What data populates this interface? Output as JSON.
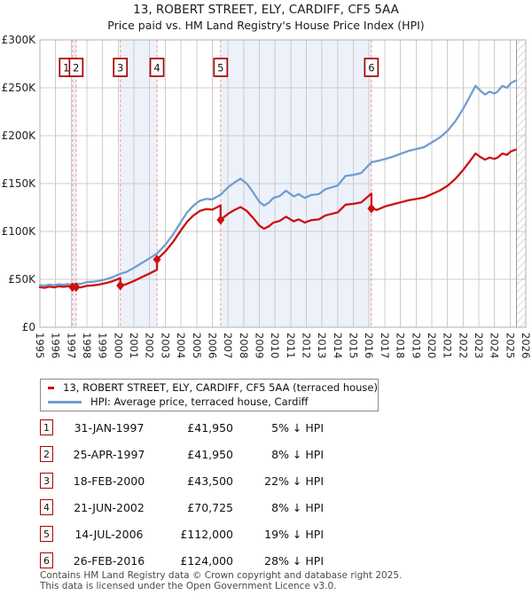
{
  "titles": {
    "line1": "13, ROBERT STREET, ELY, CARDIFF, CF5 5AA",
    "line2": "Price paid vs. HM Land Registry's House Price Index (HPI)"
  },
  "legend": {
    "items": [
      {
        "label": "13, ROBERT STREET, ELY, CARDIFF, CF5 5AA (terraced house)",
        "color": "#cc1111"
      },
      {
        "label": "HPI: Average price, terraced house, Cardiff",
        "color": "#6f9ed1"
      }
    ]
  },
  "table": {
    "rows": [
      {
        "n": "1",
        "date": "31-JAN-1997",
        "price": "£41,950",
        "vs_hpi": "5% ↓ HPI"
      },
      {
        "n": "2",
        "date": "25-APR-1997",
        "price": "£41,950",
        "vs_hpi": "8% ↓ HPI"
      },
      {
        "n": "3",
        "date": "18-FEB-2000",
        "price": "£43,500",
        "vs_hpi": "22% ↓ HPI"
      },
      {
        "n": "4",
        "date": "21-JUN-2002",
        "price": "£70,725",
        "vs_hpi": "8% ↓ HPI"
      },
      {
        "n": "5",
        "date": "14-JUL-2006",
        "price": "£112,000",
        "vs_hpi": "19% ↓ HPI"
      },
      {
        "n": "6",
        "date": "26-FEB-2016",
        "price": "£124,000",
        "vs_hpi": "28% ↓ HPI"
      }
    ]
  },
  "footer": {
    "line1": "Contains HM Land Registry data © Crown copyright and database right 2025.",
    "line2": "This data is licensed under the Open Government Licence v3.0."
  },
  "chart_data": {
    "type": "line",
    "title": "Price paid vs. HPI",
    "x_range": [
      1995,
      2026
    ],
    "ylim": [
      0,
      300000
    ],
    "y_ticks": [
      {
        "v": 0,
        "label": "£0"
      },
      {
        "v": 50,
        "label": "£50K"
      },
      {
        "v": 100,
        "label": "£100K"
      },
      {
        "v": 150,
        "label": "£150K"
      },
      {
        "v": 200,
        "label": "£200K"
      },
      {
        "v": 250,
        "label": "£250K"
      },
      {
        "v": 300,
        "label": "£300K"
      }
    ],
    "grid": true,
    "hatch_from": 2025.42,
    "bands": [
      [
        1997.08,
        1997.31
      ],
      [
        2000.13,
        2002.47
      ],
      [
        2006.53,
        2016.15
      ]
    ],
    "band_color": "#edf1fa",
    "sale_line_color": "#f09090",
    "grid_color": "#cccccc",
    "frame_color": "#b0b0b0",
    "series": [
      {
        "name": "hpi",
        "color": "#6f9ed1",
        "points": [
          [
            1995,
            44
          ],
          [
            1995.3,
            43.3
          ],
          [
            1995.6,
            44.6
          ],
          [
            1995.9,
            43.8
          ],
          [
            1996.2,
            44.9
          ],
          [
            1996.5,
            44.3
          ],
          [
            1996.8,
            45
          ],
          [
            1997.08,
            44.2
          ],
          [
            1997.31,
            45.6
          ],
          [
            1997.6,
            45.2
          ],
          [
            1998,
            47
          ],
          [
            1998.4,
            47.5
          ],
          [
            1998.8,
            48.5
          ],
          [
            1999.2,
            50
          ],
          [
            1999.6,
            52
          ],
          [
            2000.13,
            55.8
          ],
          [
            2000.5,
            57.5
          ],
          [
            2001,
            62
          ],
          [
            2001.5,
            67
          ],
          [
            2002,
            72
          ],
          [
            2002.47,
            76.9
          ],
          [
            2003,
            86
          ],
          [
            2003.5,
            97
          ],
          [
            2004,
            110
          ],
          [
            2004.4,
            120
          ],
          [
            2004.8,
            127
          ],
          [
            2005.2,
            132
          ],
          [
            2005.6,
            134
          ],
          [
            2006,
            133.5
          ],
          [
            2006.53,
            138.3
          ],
          [
            2007,
            146
          ],
          [
            2007.4,
            151
          ],
          [
            2007.8,
            155
          ],
          [
            2008.2,
            150
          ],
          [
            2008.6,
            141
          ],
          [
            2009,
            131
          ],
          [
            2009.3,
            127
          ],
          [
            2009.6,
            130
          ],
          [
            2009.9,
            135
          ],
          [
            2010.3,
            137
          ],
          [
            2010.7,
            142.5
          ],
          [
            2011.2,
            136.5
          ],
          [
            2011.5,
            139
          ],
          [
            2011.9,
            135
          ],
          [
            2012.3,
            138
          ],
          [
            2012.8,
            139
          ],
          [
            2013.2,
            144
          ],
          [
            2013.6,
            146
          ],
          [
            2014,
            148
          ],
          [
            2014.5,
            158
          ],
          [
            2015,
            159
          ],
          [
            2015.5,
            161
          ],
          [
            2016.15,
            172.2
          ],
          [
            2016.5,
            173.5
          ],
          [
            2017,
            175.5
          ],
          [
            2017.5,
            178
          ],
          [
            2018,
            181
          ],
          [
            2018.5,
            184
          ],
          [
            2019,
            186
          ],
          [
            2019.5,
            188
          ],
          [
            2020,
            193
          ],
          [
            2020.5,
            198
          ],
          [
            2021,
            205
          ],
          [
            2021.5,
            215
          ],
          [
            2022,
            228
          ],
          [
            2022.4,
            240
          ],
          [
            2022.8,
            252
          ],
          [
            2023.1,
            247
          ],
          [
            2023.4,
            243
          ],
          [
            2023.7,
            246
          ],
          [
            2024,
            244
          ],
          [
            2024.2,
            246
          ],
          [
            2024.5,
            252
          ],
          [
            2024.8,
            250
          ],
          [
            2025.05,
            255
          ],
          [
            2025.35,
            257.5
          ]
        ]
      },
      {
        "name": "price_paid",
        "color": "#cc1111",
        "points": [
          [
            1995,
            41.8
          ],
          [
            1995.3,
            41.1
          ],
          [
            1995.6,
            42.4
          ],
          [
            1995.9,
            41.6
          ],
          [
            1996.2,
            42.7
          ],
          [
            1996.5,
            42.1
          ],
          [
            1996.8,
            42.8
          ],
          [
            1997.08,
            41.95
          ],
          [
            1997.31,
            41.95
          ],
          [
            1997.6,
            41.6
          ],
          [
            1998,
            43.2
          ],
          [
            1998.4,
            43.7
          ],
          [
            1998.8,
            44.6
          ],
          [
            1999.2,
            46
          ],
          [
            1999.6,
            47.8
          ],
          [
            2000.13,
            51.3
          ],
          [
            2000.13,
            43.5
          ],
          [
            2000.5,
            44.8
          ],
          [
            2001,
            48.3
          ],
          [
            2001.5,
            52.2
          ],
          [
            2002,
            56.1
          ],
          [
            2002.47,
            60
          ],
          [
            2002.47,
            70.7
          ],
          [
            2003,
            79.1
          ],
          [
            2003.5,
            89.2
          ],
          [
            2004,
            101.2
          ],
          [
            2004.4,
            110.4
          ],
          [
            2004.8,
            116.8
          ],
          [
            2005.2,
            121.4
          ],
          [
            2005.6,
            123.3
          ],
          [
            2006,
            122.8
          ],
          [
            2006.53,
            127.2
          ],
          [
            2006.53,
            112
          ],
          [
            2007,
            118.3
          ],
          [
            2007.4,
            122.3
          ],
          [
            2007.8,
            125.5
          ],
          [
            2008.2,
            121.5
          ],
          [
            2008.6,
            114.2
          ],
          [
            2009,
            106.1
          ],
          [
            2009.3,
            102.9
          ],
          [
            2009.6,
            105.3
          ],
          [
            2009.9,
            109.3
          ],
          [
            2010.3,
            111
          ],
          [
            2010.7,
            115.4
          ],
          [
            2011.2,
            110.6
          ],
          [
            2011.5,
            112.6
          ],
          [
            2011.9,
            109.3
          ],
          [
            2012.3,
            111.8
          ],
          [
            2012.8,
            112.6
          ],
          [
            2013.2,
            116.6
          ],
          [
            2013.6,
            118.3
          ],
          [
            2014,
            119.9
          ],
          [
            2014.5,
            128
          ],
          [
            2015,
            128.8
          ],
          [
            2015.5,
            130.4
          ],
          [
            2016.15,
            139.5
          ],
          [
            2016.15,
            124
          ],
          [
            2016.5,
            122.5
          ],
          [
            2017,
            126
          ],
          [
            2017.5,
            128.2
          ],
          [
            2018,
            130.3
          ],
          [
            2018.5,
            132.5
          ],
          [
            2019,
            133.9
          ],
          [
            2019.5,
            135.4
          ],
          [
            2020,
            139
          ],
          [
            2020.5,
            142.6
          ],
          [
            2021,
            147.6
          ],
          [
            2021.5,
            154.8
          ],
          [
            2022,
            164.2
          ],
          [
            2022.4,
            172.8
          ],
          [
            2022.8,
            181.4
          ],
          [
            2023.1,
            177.8
          ],
          [
            2023.4,
            175
          ],
          [
            2023.7,
            177.1
          ],
          [
            2024,
            175.7
          ],
          [
            2024.2,
            177.1
          ],
          [
            2024.5,
            181.4
          ],
          [
            2024.8,
            180
          ],
          [
            2025.05,
            183.6
          ],
          [
            2025.35,
            185.4
          ]
        ]
      }
    ],
    "sales": [
      {
        "n": "1",
        "year": 1997.08,
        "value_k": 41.95,
        "box_dx": -7
      },
      {
        "n": "2",
        "year": 1997.31,
        "value_k": 41.95,
        "box_dx": 0
      },
      {
        "n": "3",
        "year": 2000.13,
        "value_k": 43.5,
        "box_dx": 0
      },
      {
        "n": "4",
        "year": 2002.47,
        "value_k": 70.7,
        "box_dx": 0
      },
      {
        "n": "5",
        "year": 2006.53,
        "value_k": 112,
        "box_dx": 0
      },
      {
        "n": "6",
        "year": 2016.15,
        "value_k": 124,
        "box_dx": 0
      }
    ]
  }
}
